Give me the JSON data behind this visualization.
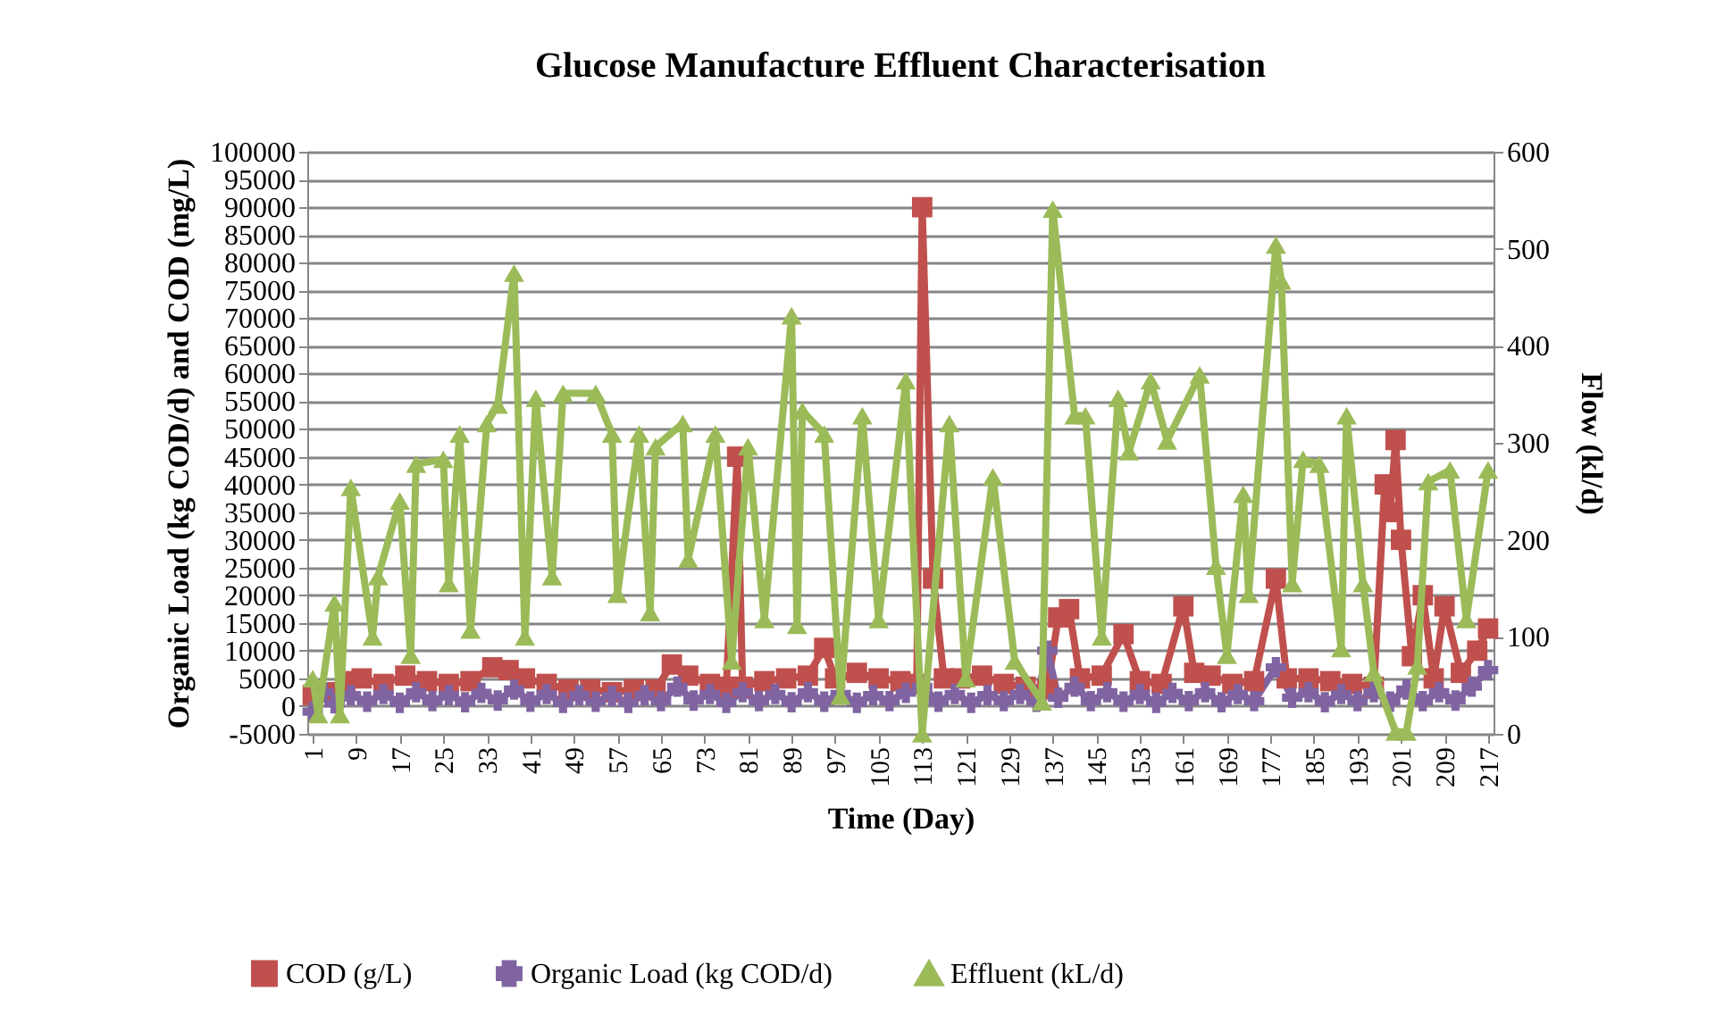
{
  "chart_data": {
    "type": "line",
    "title": "Glucose Manufacture Effluent Characterisation",
    "xlabel": "Time (Day)",
    "ylabel": "Organic Load (kg COD/d) and COD (mg/L)",
    "y2label": "Flow (kl/d)",
    "xlim": [
      0,
      218
    ],
    "xticks": [
      1,
      9,
      17,
      25,
      33,
      41,
      49,
      57,
      65,
      73,
      81,
      89,
      97,
      105,
      113,
      121,
      129,
      137,
      145,
      153,
      161,
      169,
      177,
      185,
      193,
      201,
      209,
      217
    ],
    "ylim": [
      -5000,
      100000
    ],
    "yticks": [
      -5000,
      0,
      5000,
      10000,
      15000,
      20000,
      25000,
      30000,
      35000,
      40000,
      45000,
      50000,
      55000,
      60000,
      65000,
      70000,
      75000,
      80000,
      85000,
      90000,
      95000,
      100000
    ],
    "y2lim": [
      0,
      600
    ],
    "y2ticks": [
      0,
      100,
      200,
      300,
      400,
      500,
      600
    ],
    "grid": "y",
    "legend": "bottom",
    "series": [
      {
        "name": "COD (g/L)",
        "color": "#c0504d",
        "marker": "square",
        "x": [
          1,
          4,
          7,
          10,
          14,
          18,
          22,
          26,
          30,
          34,
          37,
          40,
          44,
          48,
          52,
          56,
          60,
          64,
          67,
          70,
          74,
          77,
          79,
          80,
          84,
          88,
          92,
          95,
          97,
          101,
          105,
          109,
          112,
          113,
          115,
          117,
          120,
          124,
          128,
          132,
          136,
          138,
          140,
          142,
          146,
          150,
          153,
          157,
          161,
          163,
          166,
          170,
          174,
          178,
          180,
          184,
          188,
          192,
          196,
          198,
          199,
          200,
          201,
          203,
          205,
          207,
          209,
          212,
          215,
          217
        ],
        "values": [
          2000,
          2500,
          4500,
          5000,
          4000,
          5500,
          4500,
          4000,
          4500,
          7000,
          6500,
          5000,
          4000,
          3000,
          3000,
          2500,
          3000,
          3000,
          7500,
          5500,
          4000,
          3500,
          45000,
          3500,
          4500,
          5000,
          5500,
          10500,
          5000,
          6000,
          5000,
          4500,
          4000,
          90000,
          23000,
          5000,
          5000,
          5500,
          4000,
          3500,
          3000,
          16000,
          17500,
          5000,
          5500,
          13000,
          4500,
          4000,
          18000,
          6000,
          5500,
          4000,
          4500,
          23000,
          5000,
          5000,
          4500,
          4000,
          3500,
          40000,
          35000,
          48000,
          30000,
          9000,
          20000,
          5000,
          18000,
          6000,
          10000,
          14000
        ]
      },
      {
        "name": "Organic Load (kg COD/d)",
        "color": "#8064a2",
        "marker": "cross",
        "x": [
          1,
          3,
          5,
          8,
          11,
          14,
          17,
          20,
          23,
          26,
          29,
          32,
          35,
          38,
          41,
          44,
          47,
          50,
          53,
          56,
          59,
          62,
          65,
          68,
          71,
          74,
          77,
          80,
          83,
          86,
          89,
          92,
          95,
          98,
          101,
          104,
          107,
          110,
          113,
          116,
          119,
          122,
          125,
          128,
          131,
          134,
          136,
          138,
          141,
          144,
          147,
          150,
          153,
          156,
          159,
          162,
          165,
          168,
          171,
          174,
          178,
          181,
          184,
          187,
          190,
          193,
          196,
          199,
          202,
          205,
          208,
          211,
          214,
          217
        ],
        "values": [
          -1000,
          2500,
          500,
          2000,
          800,
          2200,
          600,
          2500,
          900,
          2000,
          700,
          2400,
          1000,
          3000,
          800,
          2200,
          600,
          2000,
          800,
          1800,
          600,
          2000,
          900,
          3500,
          1000,
          2200,
          600,
          2500,
          900,
          2200,
          700,
          2500,
          800,
          2200,
          600,
          2000,
          900,
          2400,
          3500,
          800,
          2200,
          600,
          2000,
          900,
          2200,
          800,
          10000,
          1500,
          3500,
          900,
          2500,
          800,
          2200,
          600,
          2400,
          900,
          2500,
          700,
          2200,
          900,
          7000,
          1500,
          2500,
          700,
          2200,
          900,
          2500,
          800,
          3000,
          900,
          2500,
          1000,
          3500,
          6500
        ]
      },
      {
        "name": "Effluent (kL/d)",
        "color": "#9bbb59",
        "marker": "triangle",
        "axis": "y2",
        "x": [
          1,
          2,
          5,
          6,
          8,
          12,
          13,
          17,
          19,
          20,
          25,
          26,
          28,
          30,
          33,
          35,
          38,
          40,
          42,
          45,
          47,
          53,
          56,
          57,
          61,
          63,
          64,
          69,
          70,
          75,
          78,
          81,
          84,
          89,
          90,
          91,
          95,
          98,
          102,
          105,
          110,
          113,
          118,
          121,
          126,
          130,
          135,
          137,
          141,
          143,
          146,
          149,
          151,
          155,
          158,
          164,
          167,
          169,
          172,
          173,
          178,
          179,
          181,
          183,
          186,
          190,
          191,
          194,
          196,
          200,
          202,
          204,
          206,
          210,
          213,
          217
        ],
        "values": [
          57,
          20,
          135,
          20,
          254,
          100,
          162,
          240,
          81,
          278,
          283,
          155,
          309,
          107,
          320,
          339,
          475,
          100,
          346,
          162,
          351,
          351,
          309,
          144,
          309,
          125,
          296,
          320,
          180,
          309,
          75,
          296,
          118,
          431,
          112,
          333,
          309,
          39,
          328,
          118,
          364,
          0,
          320,
          57,
          265,
          75,
          33,
          541,
          328,
          328,
          100,
          346,
          291,
          364,
          302,
          370,
          173,
          81,
          247,
          144,
          504,
          467,
          155,
          283,
          278,
          88,
          328,
          155,
          63,
          2,
          2,
          70,
          260,
          272,
          118,
          272
        ]
      }
    ]
  }
}
